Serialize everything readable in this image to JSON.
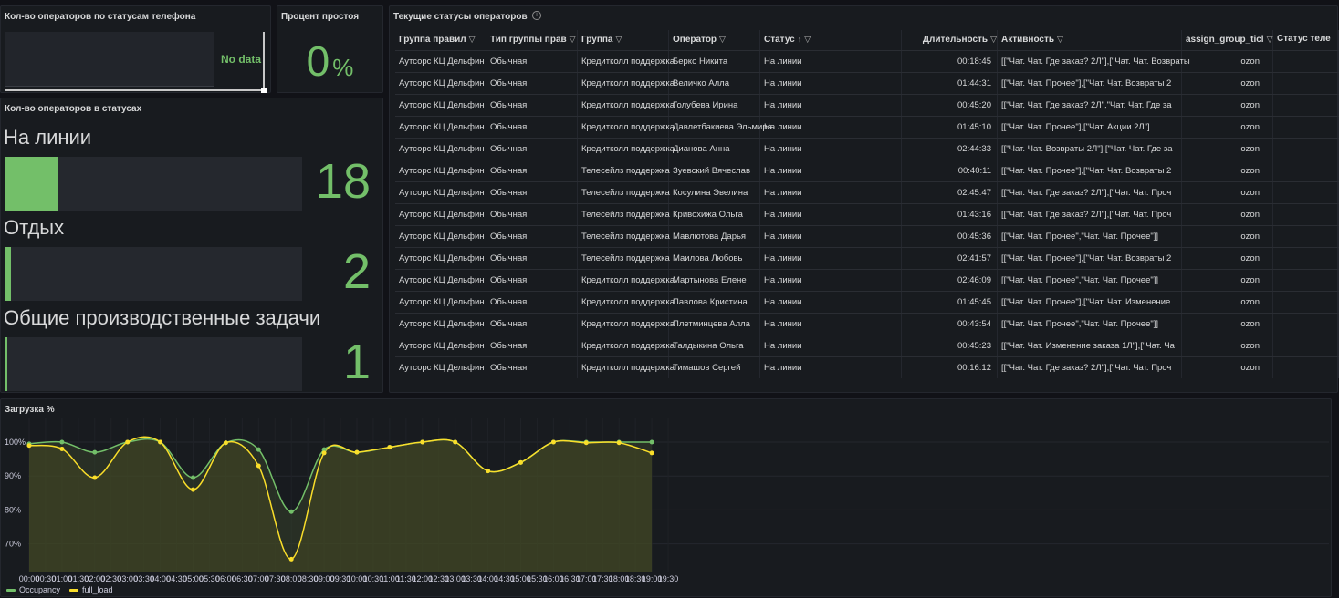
{
  "phone_panel": {
    "title": "Кол-во операторов по статусам телефона",
    "no_data": "No data"
  },
  "idle_panel": {
    "title": "Процент простоя",
    "value": "0",
    "unit": "%"
  },
  "status_panel": {
    "title": "Кол-во операторов в статусах",
    "max": 100,
    "items": [
      {
        "label": "На линии",
        "value": 18
      },
      {
        "label": "Отдых",
        "value": 2
      },
      {
        "label": "Общие производственные задачи",
        "value": 1
      }
    ]
  },
  "table_panel": {
    "title": "Текущие статусы операторов",
    "sort_indicator": "↑",
    "filter_icon": "filter-icon",
    "columns": [
      "Группа правил",
      "Тип группы прав",
      "Группа",
      "Оператор",
      "Статус",
      "Длительность",
      "Активность",
      "assign_group_ticl",
      "Статус теле"
    ],
    "rows": [
      [
        "Аутсорс КЦ Дельфин",
        "Обычная",
        "Кредитколл поддержка",
        "Берко Никита",
        "На линии",
        "00:18:45",
        "[[\"Чат. Чат. Где заказ? 2Л\"],[\"Чат. Чат. Возвраты",
        "ozon"
      ],
      [
        "Аутсорс КЦ Дельфин",
        "Обычная",
        "Кредитколл поддержка",
        "Величко Алла",
        "На линии",
        "01:44:31",
        "[[\"Чат. Чат. Прочее\"],[\"Чат. Чат. Возвраты 2",
        "ozon"
      ],
      [
        "Аутсорс КЦ Дельфин",
        "Обычная",
        "Кредитколл поддержка",
        "Голубева Ирина",
        "На линии",
        "00:45:20",
        "[[\"Чат. Чат. Где заказ? 2Л\",\"Чат. Чат. Где за",
        "ozon"
      ],
      [
        "Аутсорс КЦ Дельфин",
        "Обычная",
        "Кредитколл поддержка",
        "Давлетбакиева Эльмира",
        "На линии",
        "01:45:10",
        "[[\"Чат. Чат. Прочее\"],[\"Чат. Акции 2Л\"]",
        "ozon"
      ],
      [
        "Аутсорс КЦ Дельфин",
        "Обычная",
        "Кредитколл поддержка",
        "Дианова Анна",
        "На линии",
        "02:44:33",
        "[[\"Чат. Чат. Возвраты 2Л\"],[\"Чат. Чат. Где за",
        "ozon"
      ],
      [
        "Аутсорс КЦ Дельфин",
        "Обычная",
        "Телесейлз поддержка",
        "Зуевский Вячеслав",
        "На линии",
        "00:40:11",
        "[[\"Чат. Чат. Прочее\"],[\"Чат. Чат. Возвраты 2",
        "ozon"
      ],
      [
        "Аутсорс КЦ Дельфин",
        "Обычная",
        "Телесейлз поддержка",
        "Косулина Эвелина",
        "На линии",
        "02:45:47",
        "[[\"Чат. Чат. Где заказ? 2Л\"],[\"Чат. Чат. Проч",
        "ozon"
      ],
      [
        "Аутсорс КЦ Дельфин",
        "Обычная",
        "Телесейлз поддержка",
        "Кривохижа Ольга",
        "На линии",
        "01:43:16",
        "[[\"Чат. Чат. Где заказ? 2Л\"],[\"Чат. Чат. Проч",
        "ozon"
      ],
      [
        "Аутсорс КЦ Дельфин",
        "Обычная",
        "Телесейлз поддержка",
        "Мавлютова Дарья",
        "На линии",
        "00:45:36",
        "[[\"Чат. Чат. Прочее\",\"Чат. Чат. Прочее\"]]",
        "ozon"
      ],
      [
        "Аутсорс КЦ Дельфин",
        "Обычная",
        "Телесейлз поддержка",
        "Маилова Любовь",
        "На линии",
        "02:41:57",
        "[[\"Чат. Чат. Прочее\"],[\"Чат. Чат. Возвраты 2",
        "ozon"
      ],
      [
        "Аутсорс КЦ Дельфин",
        "Обычная",
        "Кредитколл поддержка",
        "Мартынова Елене",
        "На линии",
        "02:46:09",
        "[[\"Чат. Чат. Прочее\",\"Чат. Чат. Прочее\"]]",
        "ozon"
      ],
      [
        "Аутсорс КЦ Дельфин",
        "Обычная",
        "Кредитколл поддержка",
        "Павлова Кристина",
        "На линии",
        "01:45:45",
        "[[\"Чат. Чат. Прочее\"],[\"Чат. Чат. Изменение",
        "ozon"
      ],
      [
        "Аутсорс КЦ Дельфин",
        "Обычная",
        "Кредитколл поддержка",
        "Плетминцева Алла",
        "На линии",
        "00:43:54",
        "[[\"Чат. Чат. Прочее\",\"Чат. Чат. Прочее\"]]",
        "ozon"
      ],
      [
        "Аутсорс КЦ Дельфин",
        "Обычная",
        "Кредитколл поддержка",
        "Талдыкина Ольга",
        "На линии",
        "00:45:23",
        "[[\"Чат. Чат. Изменение заказа 1Л\"],[\"Чат. Ча",
        "ozon"
      ],
      [
        "Аутсорс КЦ Дельфин",
        "Обычная",
        "Кредитколл поддержка",
        "Тимашов Сергей",
        "На линии",
        "00:16:12",
        "[[\"Чат. Чат. Где заказ? 2Л\"],[\"Чат. Чат. Проч",
        "ozon"
      ]
    ]
  },
  "chart_data": {
    "type": "area",
    "title": "Загрузка %",
    "x": [
      "00:00",
      "01:00",
      "02:00",
      "03:00",
      "04:00",
      "05:00",
      "06:00",
      "07:00",
      "08:00",
      "09:00",
      "10:00",
      "11:00",
      "12:00",
      "13:00",
      "14:00",
      "15:00",
      "16:00",
      "17:00",
      "18:00",
      "19:00"
    ],
    "xticks": [
      "00:00",
      "00:30",
      "01:00",
      "01:30",
      "02:00",
      "02:30",
      "03:00",
      "03:30",
      "04:00",
      "04:30",
      "05:00",
      "05:30",
      "06:00",
      "06:30",
      "07:00",
      "07:30",
      "08:00",
      "08:30",
      "09:00",
      "09:30",
      "10:00",
      "10:30",
      "11:00",
      "11:30",
      "12:00",
      "12:30",
      "13:00",
      "13:30",
      "14:00",
      "14:30",
      "15:00",
      "15:30",
      "16:00",
      "16:30",
      "17:00",
      "17:30",
      "18:00",
      "18:30",
      "19:00",
      "19:30"
    ],
    "yticks": [
      "100%",
      "90%",
      "80%",
      "70%"
    ],
    "ylim": [
      62,
      100
    ],
    "series": [
      {
        "name": "Occupancy",
        "color": "#73bf69",
        "values": [
          99.5,
          100,
          97,
          100,
          100,
          89.5,
          99.8,
          97.8,
          79.5,
          97.8,
          97,
          98.5,
          100,
          100,
          91.5,
          94,
          100,
          100,
          100,
          100
        ]
      },
      {
        "name": "full_load",
        "color": "#fade2a",
        "values": [
          99,
          98,
          89.5,
          100,
          100,
          86,
          99.8,
          93,
          65.5,
          96.8,
          97,
          98.5,
          100,
          100,
          91.5,
          94,
          100,
          99.8,
          99.8,
          96.8
        ]
      }
    ],
    "fill_color": "#4a4d22",
    "legend": "bottom-left"
  }
}
